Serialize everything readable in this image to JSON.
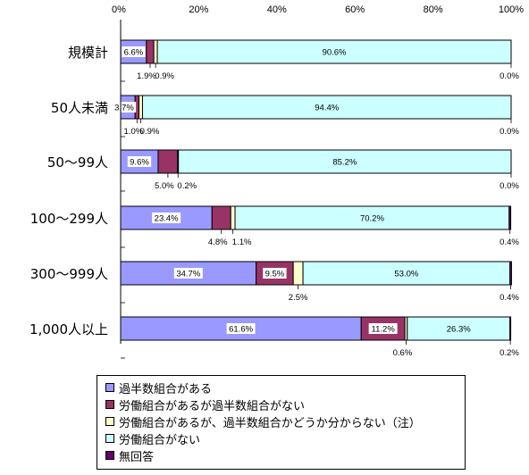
{
  "chart_data": {
    "type": "bar",
    "orientation": "horizontal",
    "stacked": true,
    "xlim": [
      0,
      100
    ],
    "x_ticks": [
      "0%",
      "20%",
      "40%",
      "60%",
      "80%",
      "100%"
    ],
    "x_axis_position": "top",
    "grid": false,
    "legend_position": "bottom",
    "categories": [
      "規模計",
      "50人未満",
      "50～99人",
      "100～299人",
      "300～999人",
      "1,000人以上"
    ],
    "series": [
      {
        "name": "過半数組合がある",
        "color": "#9999ff",
        "values": [
          6.6,
          3.7,
          9.6,
          23.4,
          34.7,
          61.6
        ],
        "labels": [
          "6.6%",
          "3.7%",
          "9.6%",
          "23.4%",
          "34.7%",
          "61.6%"
        ]
      },
      {
        "name": "労働組合があるが過半数組合がない",
        "color": "#993366",
        "values": [
          1.9,
          1.0,
          5.0,
          4.8,
          9.5,
          11.2
        ],
        "labels": [
          "1.9%",
          "1.0%",
          "5.0%",
          "4.8%",
          "9.5%",
          "11.2%"
        ]
      },
      {
        "name": "労働組合があるが、過半数組合かどうか分からない（注）",
        "color": "#ffffcc",
        "values": [
          0.9,
          0.9,
          0.2,
          1.1,
          2.5,
          0.6
        ],
        "labels": [
          "0.9%",
          "0.9%",
          "0.2%",
          "1.1%",
          "2.5%",
          "0.6%"
        ]
      },
      {
        "name": "労働組合がない",
        "color": "#ccffff",
        "values": [
          90.6,
          94.4,
          85.2,
          70.2,
          53.0,
          26.3
        ],
        "labels": [
          "90.6%",
          "94.4%",
          "85.2%",
          "70.2%",
          "53.0%",
          "26.3%"
        ]
      },
      {
        "name": "無回答",
        "color": "#660066",
        "values": [
          0.0,
          0.0,
          0.0,
          0.4,
          0.4,
          0.2
        ],
        "labels": [
          "0.0%",
          "0.0%",
          "0.0%",
          "0.4%",
          "0.4%",
          "0.2%"
        ]
      }
    ]
  }
}
